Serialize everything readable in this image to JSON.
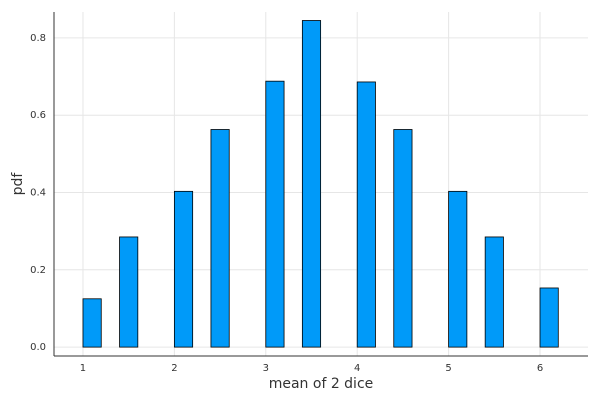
{
  "chart_data": {
    "type": "histogram",
    "xlabel": "mean of 2 dice",
    "ylabel": "pdf",
    "bins": [
      1,
      1.2,
      1.4,
      1.6,
      1.8,
      2,
      2.2,
      2.4,
      2.6,
      2.8,
      3,
      3.2,
      3.4,
      3.6,
      3.8,
      4,
      4.2,
      4.4,
      4.6,
      4.8,
      5,
      5.2,
      5.4,
      5.6,
      5.8,
      6,
      6.2
    ],
    "values": [
      0.125,
      0,
      0.285,
      0,
      0,
      0.403,
      0,
      0.563,
      0,
      0,
      0.688,
      0,
      0.845,
      0,
      0,
      0.686,
      0,
      0.563,
      0,
      0,
      0.403,
      0,
      0.285,
      0,
      0,
      0.153
    ],
    "color": "#009af9",
    "xlim": [
      0.683,
      6.525
    ],
    "ylim": [
      -0.023,
      0.867
    ],
    "xticks": [
      1,
      2,
      3,
      4,
      5,
      6
    ],
    "yticks": [
      {
        "value": 0,
        "label": "0.0"
      },
      0.2,
      0.4,
      0.6,
      0.8
    ],
    "grid": true
  }
}
